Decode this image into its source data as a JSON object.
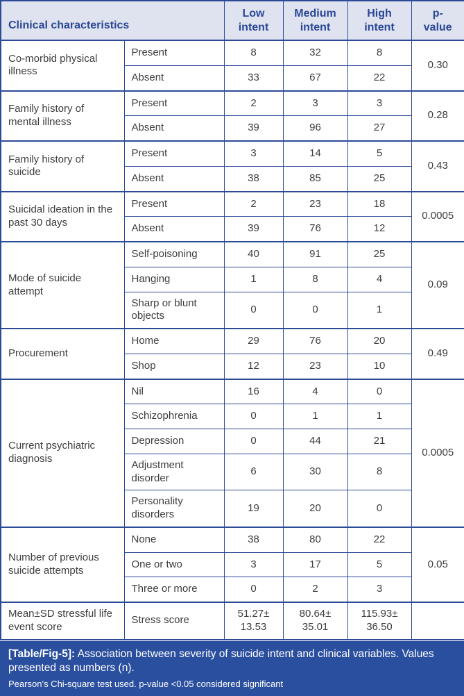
{
  "colors": {
    "border_navy": "#2c4b97",
    "header_bg": "#dfe3f0",
    "header_text": "#2a4796",
    "body_text": "#3d3d3d",
    "footer_bg": "#2b4f9f",
    "footer_text": "#ffffff"
  },
  "header": {
    "title": "Clinical characteristics",
    "columns": [
      "Low\nintent",
      "Medium\nintent",
      "High\nintent",
      "p-\nvalue"
    ]
  },
  "groups": [
    {
      "label": "Co-morbid physical illness",
      "p_value": "0.30",
      "rows": [
        {
          "label": "Present",
          "values": [
            "8",
            "32",
            "8"
          ]
        },
        {
          "label": "Absent",
          "values": [
            "33",
            "67",
            "22"
          ]
        }
      ]
    },
    {
      "label": "Family history of mental illness",
      "p_value": "0.28",
      "rows": [
        {
          "label": "Present",
          "values": [
            "2",
            "3",
            "3"
          ]
        },
        {
          "label": "Absent",
          "values": [
            "39",
            "96",
            "27"
          ]
        }
      ]
    },
    {
      "label": "Family history of suicide",
      "p_value": "0.43",
      "rows": [
        {
          "label": "Present",
          "values": [
            "3",
            "14",
            "5"
          ]
        },
        {
          "label": "Absent",
          "values": [
            "38",
            "85",
            "25"
          ]
        }
      ]
    },
    {
      "label": "Suicidal ideation in the past 30 days",
      "p_value": "0.0005",
      "rows": [
        {
          "label": "Present",
          "values": [
            "2",
            "23",
            "18"
          ]
        },
        {
          "label": "Absent",
          "values": [
            "39",
            "76",
            "12"
          ]
        }
      ]
    },
    {
      "label": "Mode of suicide attempt",
      "p_value": "0.09",
      "rows": [
        {
          "label": "Self-poisoning",
          "values": [
            "40",
            "91",
            "25"
          ]
        },
        {
          "label": "Hanging",
          "values": [
            "1",
            "8",
            "4"
          ]
        },
        {
          "label": "Sharp or blunt objects",
          "values": [
            "0",
            "0",
            "1"
          ]
        }
      ]
    },
    {
      "label": "Procurement",
      "p_value": "0.49",
      "rows": [
        {
          "label": "Home",
          "values": [
            "29",
            "76",
            "20"
          ]
        },
        {
          "label": "Shop",
          "values": [
            "12",
            "23",
            "10"
          ]
        }
      ]
    },
    {
      "label": "Current psychiatric diagnosis",
      "p_value": "0.0005",
      "rows": [
        {
          "label": "Nil",
          "values": [
            "16",
            "4",
            "0"
          ]
        },
        {
          "label": "Schizophrenia",
          "values": [
            "0",
            "1",
            "1"
          ]
        },
        {
          "label": "Depression",
          "values": [
            "0",
            "44",
            "21"
          ]
        },
        {
          "label": "Adjustment disorder",
          "values": [
            "6",
            "30",
            "8"
          ]
        },
        {
          "label": "Personality disorders",
          "values": [
            "19",
            "20",
            "0"
          ]
        }
      ]
    },
    {
      "label": "Number of previous suicide attempts",
      "p_value": "0.05",
      "rows": [
        {
          "label": "None",
          "values": [
            "38",
            "80",
            "22"
          ]
        },
        {
          "label": "One or two",
          "values": [
            "3",
            "17",
            "5"
          ]
        },
        {
          "label": "Three or more",
          "values": [
            "0",
            "2",
            "3"
          ]
        }
      ]
    },
    {
      "label": "Mean±SD stressful life event score",
      "p_value": "",
      "rows": [
        {
          "label": "Stress score",
          "values": [
            "51.27±\n13.53",
            "80.64±\n35.01",
            "115.93±\n36.50"
          ]
        }
      ]
    }
  ],
  "footer": {
    "tag": "[Table/Fig-5]:",
    "caption": "Association between severity of suicide intent and clinical variables. Values presented as numbers (n).",
    "note": "Pearson’s Chi-square test used. p-value <0.05 considered significant"
  }
}
